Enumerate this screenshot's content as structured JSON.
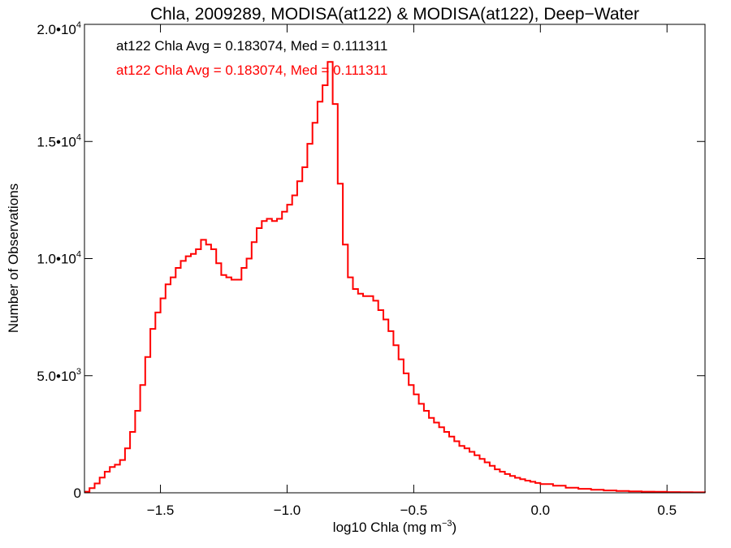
{
  "chart_data": {
    "type": "line",
    "title": "Chla, 2009289, MODISA(at122) & MODISA(at122), Deep−Water",
    "xlabel": "log10 Chla (mg m",
    "xlabel_sup": "−3",
    "xlabel_suffix": ")",
    "ylabel": "Number of Observations",
    "xlim": [
      -1.8,
      0.65
    ],
    "ylim": [
      0,
      20000
    ],
    "x_ticks": [
      {
        "value": -1.5,
        "label": "−1.5"
      },
      {
        "value": -1.0,
        "label": "−1.0"
      },
      {
        "value": -0.5,
        "label": "−0.5"
      },
      {
        "value": 0.0,
        "label": "0.0"
      },
      {
        "value": 0.5,
        "label": "0.5"
      }
    ],
    "y_ticks": [
      {
        "value": 0,
        "label": "0",
        "sup": ""
      },
      {
        "value": 5000,
        "label": "5.0•10",
        "sup": "3"
      },
      {
        "value": 10000,
        "label": "1.0•10",
        "sup": "4"
      },
      {
        "value": 15000,
        "label": "1.5•10",
        "sup": "4"
      },
      {
        "value": 20000,
        "label": "2.0•10",
        "sup": "4"
      }
    ],
    "annotations": [
      {
        "text": "at122 Chla Avg = 0.183074, Med = 0.111311",
        "color": "#000000"
      },
      {
        "text": "at122 Chla Avg = 0.183074, Med = 0.111311",
        "color": "#ff0000"
      }
    ],
    "series": [
      {
        "color": "#ff0000",
        "step": true,
        "x": [
          -1.8,
          -1.78,
          -1.76,
          -1.74,
          -1.72,
          -1.7,
          -1.68,
          -1.66,
          -1.64,
          -1.62,
          -1.6,
          -1.58,
          -1.56,
          -1.54,
          -1.52,
          -1.5,
          -1.48,
          -1.46,
          -1.44,
          -1.42,
          -1.4,
          -1.38,
          -1.36,
          -1.34,
          -1.32,
          -1.3,
          -1.28,
          -1.26,
          -1.24,
          -1.22,
          -1.2,
          -1.18,
          -1.16,
          -1.14,
          -1.12,
          -1.1,
          -1.08,
          -1.06,
          -1.04,
          -1.02,
          -1.0,
          -0.98,
          -0.96,
          -0.94,
          -0.92,
          -0.9,
          -0.88,
          -0.86,
          -0.84,
          -0.82,
          -0.8,
          -0.78,
          -0.76,
          -0.74,
          -0.72,
          -0.7,
          -0.68,
          -0.66,
          -0.64,
          -0.62,
          -0.6,
          -0.58,
          -0.56,
          -0.54,
          -0.52,
          -0.5,
          -0.48,
          -0.46,
          -0.44,
          -0.42,
          -0.4,
          -0.38,
          -0.36,
          -0.34,
          -0.32,
          -0.3,
          -0.28,
          -0.26,
          -0.24,
          -0.22,
          -0.2,
          -0.18,
          -0.16,
          -0.14,
          -0.12,
          -0.1,
          -0.08,
          -0.06,
          -0.04,
          -0.02,
          0.0,
          0.05,
          0.1,
          0.15,
          0.2,
          0.25,
          0.3,
          0.35,
          0.4,
          0.45,
          0.5,
          0.55,
          0.6,
          0.65
        ],
        "y": [
          50,
          200,
          400,
          650,
          900,
          1100,
          1200,
          1400,
          1900,
          2600,
          3500,
          4600,
          5800,
          7000,
          7700,
          8300,
          8900,
          9200,
          9600,
          9900,
          10100,
          10200,
          10400,
          10800,
          10600,
          10400,
          9800,
          9300,
          9200,
          9100,
          9100,
          9600,
          10000,
          10700,
          11300,
          11600,
          11700,
          11600,
          11700,
          12000,
          12300,
          12700,
          13300,
          13900,
          14900,
          15800,
          16700,
          17400,
          18400,
          16600,
          13200,
          10600,
          9200,
          8700,
          8500,
          8400,
          8400,
          8200,
          7800,
          7400,
          6900,
          6300,
          5700,
          5100,
          4600,
          4200,
          3800,
          3500,
          3200,
          3000,
          2800,
          2600,
          2400,
          2200,
          2000,
          1900,
          1750,
          1600,
          1450,
          1300,
          1150,
          1000,
          900,
          800,
          720,
          640,
          580,
          520,
          470,
          420,
          370,
          300,
          220,
          170,
          130,
          100,
          80,
          60,
          50,
          40,
          30,
          25,
          20,
          15
        ]
      }
    ]
  }
}
